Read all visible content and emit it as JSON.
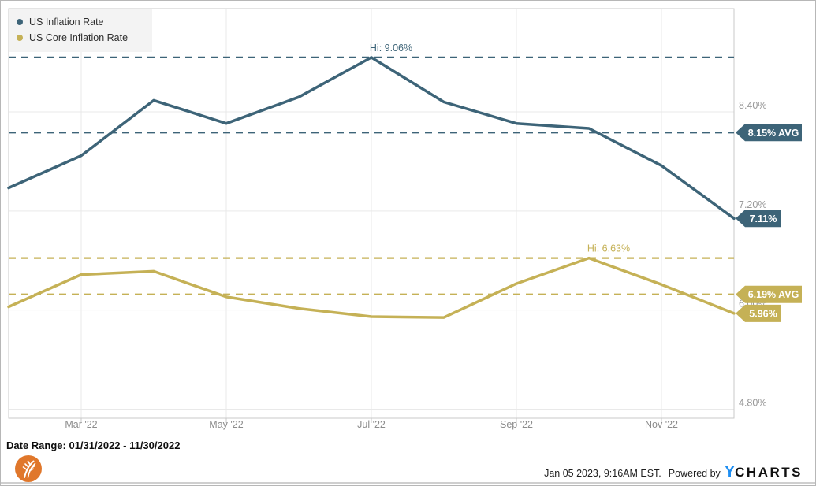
{
  "page": {
    "background": "#ffffff",
    "bottom_divider_color": "#cfcfcf",
    "grid_color": "#e9e9e9",
    "border_color": "#c9c9c9",
    "axis_text_color": "#999999",
    "x_text_color": "#8c8c8c"
  },
  "legend": {
    "items": [
      {
        "label": "US Inflation Rate",
        "color": "#3d6478"
      },
      {
        "label": "US Core Inflation Rate",
        "color": "#c5b156"
      }
    ]
  },
  "chart_data": {
    "type": "line",
    "x_dates": [
      "01/31/2022",
      "02/28/2022",
      "03/31/2022",
      "04/30/2022",
      "05/31/2022",
      "06/30/2022",
      "07/31/2022",
      "08/31/2022",
      "09/30/2022",
      "10/31/2022",
      "11/30/2022"
    ],
    "x_ticks": [
      {
        "index": 1,
        "label": "Mar '22"
      },
      {
        "index": 3,
        "label": "May '22"
      },
      {
        "index": 5,
        "label": "Jul '22"
      },
      {
        "index": 7,
        "label": "Sep '22"
      },
      {
        "index": 9,
        "label": "Nov '22"
      }
    ],
    "y_ticks": [
      {
        "label": "8.40%",
        "value": 8.4
      },
      {
        "label": "7.20%",
        "value": 7.2
      },
      {
        "label": "6.00%",
        "value": 6.0
      },
      {
        "label": "4.80%",
        "value": 4.8
      }
    ],
    "ylim": [
      4.69,
      9.65
    ],
    "grid": true,
    "legend_position": "top-left",
    "series": [
      {
        "name": "US Inflation Rate",
        "color": "#3d6478",
        "values": [
          7.48,
          7.87,
          8.54,
          8.26,
          8.58,
          9.06,
          8.52,
          8.26,
          8.2,
          7.75,
          7.11
        ],
        "high": {
          "label": "Hi: 9.06%",
          "value": 9.06,
          "index": 5
        },
        "avg": {
          "label": "8.15% AVG",
          "value": 8.15
        },
        "last": {
          "label": "7.11%",
          "value": 7.11
        }
      },
      {
        "name": "US Core Inflation Rate",
        "color": "#c5b156",
        "values": [
          6.04,
          6.43,
          6.47,
          6.16,
          6.02,
          5.92,
          5.91,
          6.32,
          6.63,
          6.31,
          5.96
        ],
        "high": {
          "label": "Hi: 6.63%",
          "value": 6.63,
          "index": 8
        },
        "avg": {
          "label": "6.19% AVG",
          "value": 6.19
        },
        "last": {
          "label": "5.96%",
          "value": 5.96
        }
      }
    ]
  },
  "footer": {
    "date_range": "Date Range: 01/31/2022 - 11/30/2022",
    "timestamp": "Jan 05 2023, 9:16AM EST.",
    "powered_by": "Powered by",
    "brand": {
      "first_letter": "Y",
      "rest": "CHARTS",
      "letter_color": "#1e8ef2",
      "text_color": "#101010"
    },
    "logo_color": "#e0772b"
  }
}
